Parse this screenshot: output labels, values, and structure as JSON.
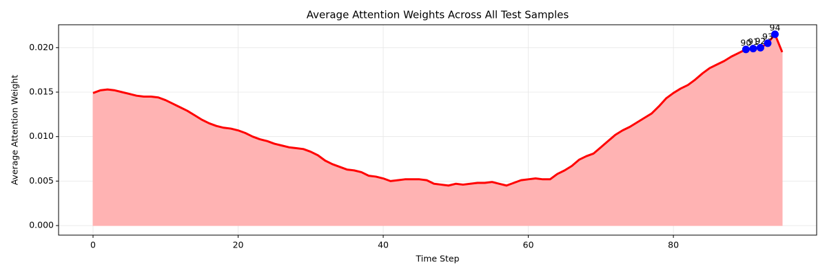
{
  "chart_data": {
    "type": "line",
    "title": "Average Attention Weights Across All Test Samples",
    "xlabel": "Time Step",
    "ylabel": "Average Attention Weight",
    "x": [
      0,
      1,
      2,
      3,
      4,
      5,
      6,
      7,
      8,
      9,
      10,
      11,
      12,
      13,
      14,
      15,
      16,
      17,
      18,
      19,
      20,
      21,
      22,
      23,
      24,
      25,
      26,
      27,
      28,
      29,
      30,
      31,
      32,
      33,
      34,
      35,
      36,
      37,
      38,
      39,
      40,
      41,
      42,
      43,
      44,
      45,
      46,
      47,
      48,
      49,
      50,
      51,
      52,
      53,
      54,
      55,
      56,
      57,
      58,
      59,
      60,
      61,
      62,
      63,
      64,
      65,
      66,
      67,
      68,
      69,
      70,
      71,
      72,
      73,
      74,
      75,
      76,
      77,
      78,
      79,
      80,
      81,
      82,
      83,
      84,
      85,
      86,
      87,
      88,
      89,
      90,
      91,
      92,
      93,
      94,
      95
    ],
    "series": [
      {
        "color": "#ff0000",
        "fill": "#ffb3b3",
        "values": [
          0.0149,
          0.0152,
          0.0153,
          0.0152,
          0.015,
          0.0148,
          0.0146,
          0.0145,
          0.0145,
          0.0144,
          0.0141,
          0.0137,
          0.0133,
          0.0129,
          0.0124,
          0.0119,
          0.0115,
          0.0112,
          0.011,
          0.0109,
          0.0107,
          0.0104,
          0.01,
          0.0097,
          0.0095,
          0.0092,
          0.009,
          0.0088,
          0.0087,
          0.0086,
          0.0083,
          0.0079,
          0.0073,
          0.0069,
          0.0066,
          0.0063,
          0.0062,
          0.006,
          0.0056,
          0.0055,
          0.0053,
          0.005,
          0.0051,
          0.0052,
          0.0052,
          0.0052,
          0.0051,
          0.0047,
          0.0046,
          0.0045,
          0.0047,
          0.0046,
          0.0047,
          0.0048,
          0.0048,
          0.0049,
          0.0047,
          0.0045,
          0.0048,
          0.0051,
          0.0052,
          0.0053,
          0.0052,
          0.0052,
          0.0058,
          0.0062,
          0.0067,
          0.0074,
          0.0078,
          0.0081,
          0.0088,
          0.0095,
          0.0102,
          0.0107,
          0.0111,
          0.0116,
          0.0121,
          0.0126,
          0.0134,
          0.0143,
          0.0149,
          0.0154,
          0.0158,
          0.0164,
          0.0171,
          0.0177,
          0.0181,
          0.0185,
          0.019,
          0.0194,
          0.0198,
          0.0199,
          0.02,
          0.0205,
          0.0215,
          0.0195
        ]
      }
    ],
    "highlight": [
      90,
      91,
      92,
      93,
      94
    ],
    "highlight_color": "#0000ff",
    "xlim": [
      -4.75,
      99.75
    ],
    "ylim": [
      -0.001075,
      0.022575
    ],
    "xticks": [
      0,
      20,
      40,
      60,
      80
    ],
    "yticks": [
      {
        "value": 0,
        "label": "0.000"
      },
      {
        "value": 0.005,
        "label": "0.005"
      },
      {
        "value": 0.01,
        "label": "0.010"
      },
      {
        "value": 0.015,
        "label": "0.015"
      },
      {
        "value": 0.02,
        "label": "0.020"
      }
    ],
    "grid": true
  }
}
